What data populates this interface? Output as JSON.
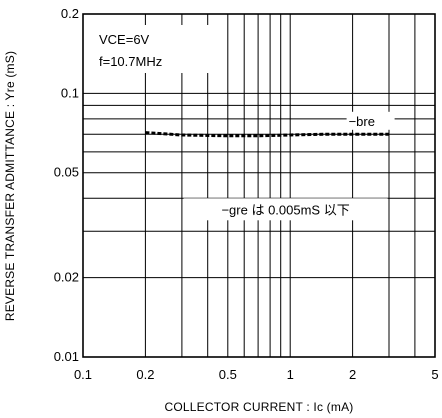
{
  "chart_data": {
    "type": "line",
    "title": "",
    "xlabel": "COLLECTOR CURRENT : Ic (mA)",
    "ylabel": "REVERSE TRANSFER ADMITTANCE : Yre (mS)",
    "x_scale": "log",
    "y_scale": "log",
    "xlim": [
      0.1,
      5
    ],
    "ylim": [
      0.01,
      0.2
    ],
    "x_ticks": [
      {
        "value": 0.1,
        "label": "0.1"
      },
      {
        "value": 0.2,
        "label": "0.2"
      },
      {
        "value": 0.5,
        "label": "0.5"
      },
      {
        "value": 1,
        "label": "1"
      },
      {
        "value": 2,
        "label": "2"
      },
      {
        "value": 5,
        "label": "5"
      }
    ],
    "y_ticks": [
      {
        "value": 0.01,
        "label": "0.01"
      },
      {
        "value": 0.02,
        "label": "0.02"
      },
      {
        "value": 0.05,
        "label": "0.05"
      },
      {
        "value": 0.1,
        "label": "0.1"
      },
      {
        "value": 0.2,
        "label": "0.2"
      }
    ],
    "grid": true,
    "conditions": [
      "VCE=6V",
      "f=10.7MHz"
    ],
    "series": [
      {
        "name": "−bre",
        "x": [
          0.2,
          0.3,
          0.5,
          0.7,
          1,
          1.5,
          2,
          3
        ],
        "y": [
          0.071,
          0.0695,
          0.069,
          0.069,
          0.0695,
          0.07,
          0.07,
          0.07
        ]
      }
    ],
    "annotations": [
      {
        "text": "−bre",
        "x": 2,
        "y": 0.076
      },
      {
        "text": "−gre は 0.005mS 以下",
        "x": 0.95,
        "y": 0.036
      }
    ]
  }
}
